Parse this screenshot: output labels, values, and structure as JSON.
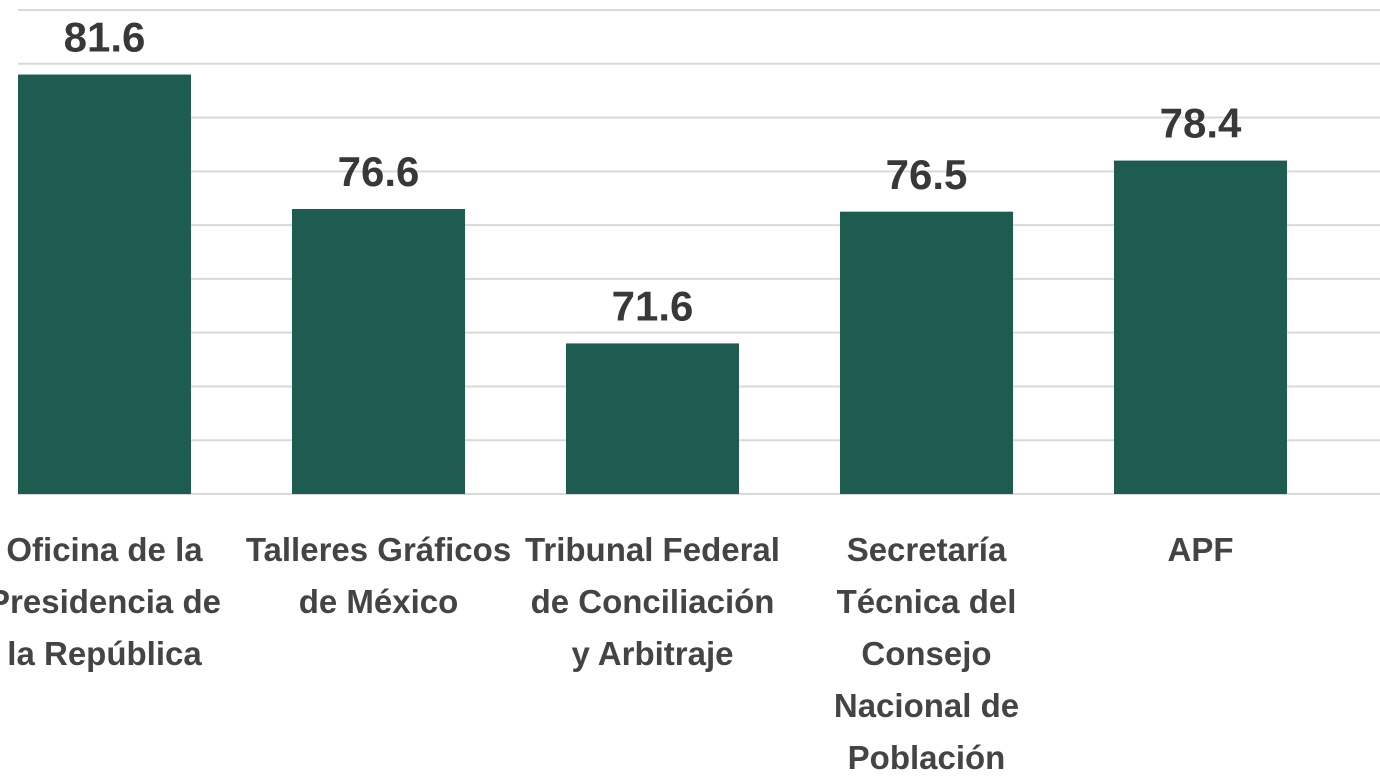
{
  "chart_data": {
    "type": "bar",
    "categories": [
      "Oficina de la Presidencia de la República",
      "Talleres Gráficos de México",
      "Tribunal Federal de Conciliación y Arbitraje",
      "Secretaría Técnica del Consejo Nacional de Población",
      "APF"
    ],
    "values": [
      81.6,
      76.6,
      71.6,
      76.5,
      78.4
    ],
    "color": "#1e5b50",
    "ylim": [
      66,
      84
    ],
    "yticks": [
      66,
      68,
      70,
      72,
      74,
      76,
      78,
      80,
      82,
      84
    ],
    "grid": true
  }
}
